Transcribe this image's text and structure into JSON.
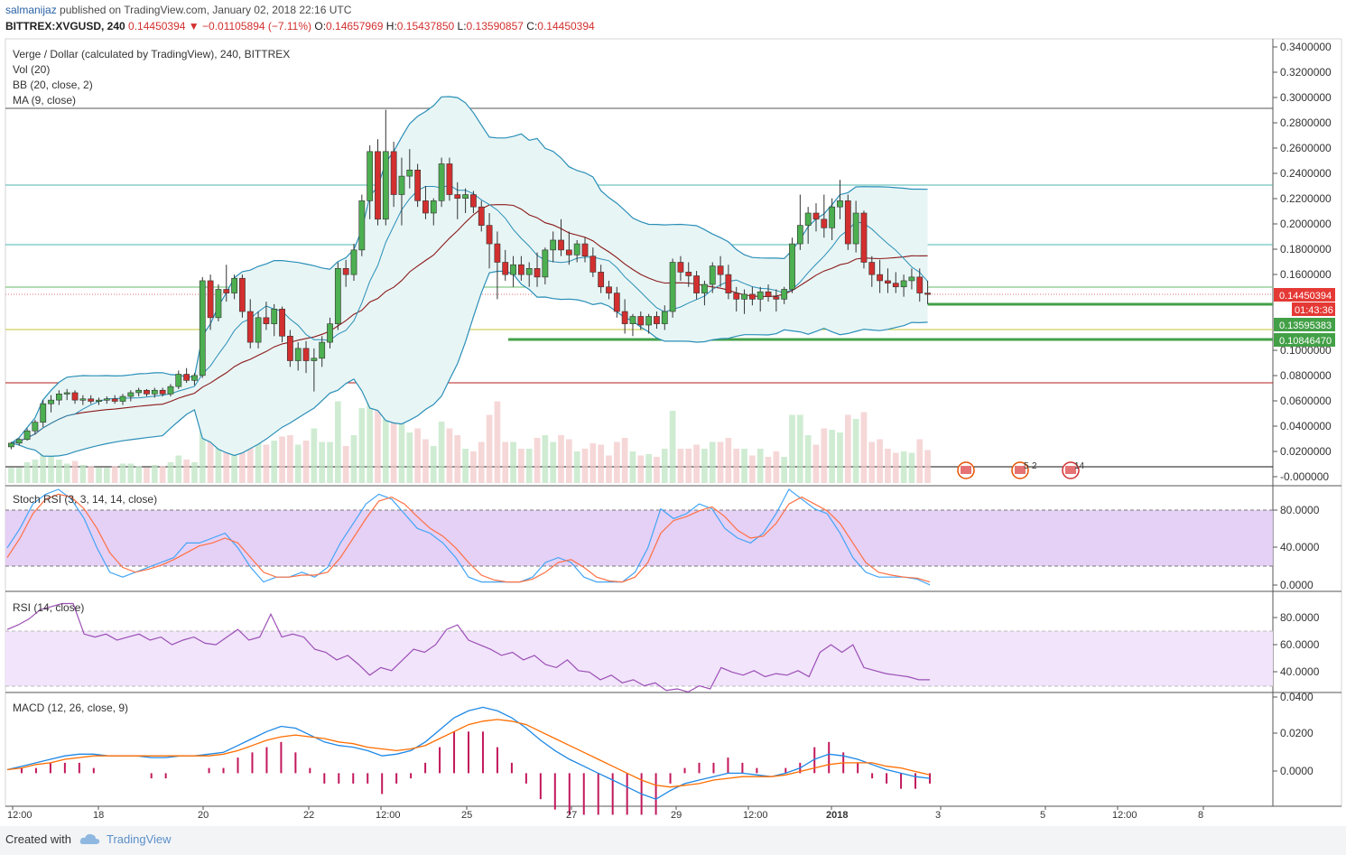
{
  "header": {
    "user": "salmanijaz",
    "published": "published on TradingView.com, January 02, 2018 22:16 UTC",
    "symbol": "BITTREX:XVGUSD, 240",
    "last": "0.14450394",
    "change": "−0.01105894 (−7.11%)",
    "o_label": "O:",
    "o": "0.14657969",
    "h_label": "H:",
    "h": "0.15437850",
    "l_label": "L:",
    "l": "0.13590857",
    "c_label": "C:",
    "c": "0.14450394"
  },
  "legend": {
    "title": "Verge / Dollar (calculated by TradingView), 240, BITTREX",
    "vol": "Vol (20)",
    "bb": "BB (20, close, 2)",
    "ma": "MA (9, close)",
    "stoch": "Stoch RSI (3, 3, 14, 14, close)",
    "rsi": "RSI (14, close)",
    "macd": "MACD (12, 26, close, 9)"
  },
  "price_axis": [
    "0.3400000",
    "0.3200000",
    "0.3000000",
    "0.2800000",
    "0.2600000",
    "0.2400000",
    "0.2200000",
    "0.2000000",
    "0.1800000",
    "0.1600000",
    "0.1000000",
    "0.0800000",
    "0.0600000",
    "0.0400000",
    "0.0200000",
    "-0.000000"
  ],
  "price_tags": {
    "last": "0.14450394",
    "countdown": "01:43:36",
    "support1": "0.13595383",
    "support2": "0.10846470"
  },
  "stoch_axis": [
    "80.0000",
    "40.0000",
    "0.0000"
  ],
  "rsi_axis": [
    "80.0000",
    "60.0000",
    "40.0000"
  ],
  "macd_axis": [
    "0.0400",
    "0.0200",
    "0.0000"
  ],
  "time_axis": [
    "12:00",
    "18",
    "20",
    "22",
    "12:00",
    "25",
    "27",
    "29",
    "12:00",
    "2018",
    "3",
    "5",
    "12:00",
    "8"
  ],
  "events": {
    "e1": "5",
    "e2": "2",
    "e3": "14"
  },
  "footer": {
    "created": "Created with",
    "brand": "TradingView"
  },
  "colors": {
    "up": "#4caf50",
    "down": "#d32f2f",
    "bb_band": "#2a8fb8",
    "bb_fill": "#e8f5f5",
    "ma": "#8b1a1a",
    "stoch_k": "#42a5f5",
    "stoch_d": "#ff7043",
    "rsi": "#9c4fb5",
    "macd": "#1e88e5",
    "signal": "#ff6d00",
    "hist": "#c2185b"
  },
  "chart_data": [
    {
      "type": "candlestick",
      "title": "Verge / Dollar (calculated by TradingView), 240, BITTREX",
      "ylim": [
        -0.005,
        0.345
      ],
      "x_ticks": [
        "12:00",
        "18",
        "20",
        "22",
        "12:00",
        "25",
        "27",
        "29",
        "12:00",
        "2018",
        "3",
        "5",
        "12:00",
        "8"
      ],
      "ohlc": [
        [
          0.02,
          0.024,
          0.018,
          0.023
        ],
        [
          0.023,
          0.027,
          0.021,
          0.026
        ],
        [
          0.026,
          0.035,
          0.025,
          0.033
        ],
        [
          0.033,
          0.042,
          0.03,
          0.04
        ],
        [
          0.04,
          0.058,
          0.036,
          0.055
        ],
        [
          0.055,
          0.062,
          0.048,
          0.058
        ],
        [
          0.058,
          0.066,
          0.054,
          0.063
        ],
        [
          0.063,
          0.067,
          0.058,
          0.064
        ],
        [
          0.064,
          0.066,
          0.055,
          0.058
        ],
        [
          0.058,
          0.062,
          0.054,
          0.059
        ],
        [
          0.059,
          0.062,
          0.055,
          0.057
        ],
        [
          0.057,
          0.06,
          0.054,
          0.058
        ],
        [
          0.058,
          0.061,
          0.055,
          0.059
        ],
        [
          0.059,
          0.062,
          0.055,
          0.057
        ],
        [
          0.057,
          0.063,
          0.054,
          0.061
        ],
        [
          0.061,
          0.066,
          0.057,
          0.064
        ],
        [
          0.064,
          0.068,
          0.061,
          0.066
        ],
        [
          0.066,
          0.067,
          0.061,
          0.063
        ],
        [
          0.063,
          0.068,
          0.06,
          0.066
        ],
        [
          0.066,
          0.068,
          0.061,
          0.063
        ],
        [
          0.063,
          0.071,
          0.061,
          0.069
        ],
        [
          0.069,
          0.082,
          0.067,
          0.079
        ],
        [
          0.079,
          0.084,
          0.072,
          0.074
        ],
        [
          0.074,
          0.08,
          0.07,
          0.078
        ],
        [
          0.078,
          0.158,
          0.076,
          0.155
        ],
        [
          0.155,
          0.16,
          0.115,
          0.125
        ],
        [
          0.125,
          0.152,
          0.122,
          0.148
        ],
        [
          0.148,
          0.168,
          0.138,
          0.145
        ],
        [
          0.145,
          0.16,
          0.14,
          0.157
        ],
        [
          0.157,
          0.16,
          0.125,
          0.13
        ],
        [
          0.13,
          0.14,
          0.1,
          0.105
        ],
        [
          0.105,
          0.13,
          0.1,
          0.125
        ],
        [
          0.125,
          0.138,
          0.115,
          0.12
        ],
        [
          0.12,
          0.136,
          0.11,
          0.132
        ],
        [
          0.132,
          0.134,
          0.105,
          0.11
        ],
        [
          0.11,
          0.115,
          0.085,
          0.09
        ],
        [
          0.09,
          0.105,
          0.082,
          0.1
        ],
        [
          0.1,
          0.106,
          0.08,
          0.09
        ],
        [
          0.09,
          0.1,
          0.065,
          0.092
        ],
        [
          0.092,
          0.11,
          0.085,
          0.105
        ],
        [
          0.105,
          0.125,
          0.1,
          0.12
        ],
        [
          0.12,
          0.17,
          0.115,
          0.165
        ],
        [
          0.165,
          0.172,
          0.15,
          0.16
        ],
        [
          0.16,
          0.185,
          0.155,
          0.18
        ],
        [
          0.18,
          0.225,
          0.175,
          0.22
        ],
        [
          0.22,
          0.265,
          0.205,
          0.26
        ],
        [
          0.26,
          0.27,
          0.2,
          0.205
        ],
        [
          0.205,
          0.294,
          0.2,
          0.26
        ],
        [
          0.26,
          0.268,
          0.215,
          0.225
        ],
        [
          0.225,
          0.255,
          0.2,
          0.24
        ],
        [
          0.24,
          0.262,
          0.23,
          0.245
        ],
        [
          0.245,
          0.25,
          0.215,
          0.22
        ],
        [
          0.22,
          0.232,
          0.205,
          0.21
        ],
        [
          0.21,
          0.222,
          0.2,
          0.22
        ],
        [
          0.22,
          0.255,
          0.215,
          0.25
        ],
        [
          0.25,
          0.255,
          0.22,
          0.225
        ],
        [
          0.225,
          0.235,
          0.205,
          0.222
        ],
        [
          0.222,
          0.23,
          0.21,
          0.225
        ],
        [
          0.225,
          0.228,
          0.21,
          0.215
        ],
        [
          0.215,
          0.22,
          0.195,
          0.2
        ],
        [
          0.2,
          0.21,
          0.165,
          0.185
        ],
        [
          0.185,
          0.195,
          0.14,
          0.17
        ],
        [
          0.17,
          0.18,
          0.155,
          0.16
        ],
        [
          0.16,
          0.175,
          0.15,
          0.168
        ],
        [
          0.168,
          0.175,
          0.155,
          0.16
        ],
        [
          0.16,
          0.17,
          0.15,
          0.165
        ],
        [
          0.165,
          0.178,
          0.15,
          0.158
        ],
        [
          0.158,
          0.182,
          0.152,
          0.18
        ],
        [
          0.18,
          0.195,
          0.17,
          0.188
        ],
        [
          0.188,
          0.205,
          0.175,
          0.18
        ],
        [
          0.18,
          0.195,
          0.168,
          0.176
        ],
        [
          0.176,
          0.188,
          0.17,
          0.185
        ],
        [
          0.185,
          0.19,
          0.17,
          0.175
        ],
        [
          0.175,
          0.182,
          0.158,
          0.162
        ],
        [
          0.162,
          0.168,
          0.145,
          0.15
        ],
        [
          0.15,
          0.155,
          0.14,
          0.145
        ],
        [
          0.145,
          0.15,
          0.125,
          0.13
        ],
        [
          0.13,
          0.14,
          0.112,
          0.12
        ],
        [
          0.12,
          0.128,
          0.11,
          0.126
        ],
        [
          0.126,
          0.13,
          0.115,
          0.119
        ],
        [
          0.119,
          0.128,
          0.112,
          0.126
        ],
        [
          0.126,
          0.13,
          0.116,
          0.12
        ],
        [
          0.12,
          0.135,
          0.115,
          0.13
        ],
        [
          0.13,
          0.173,
          0.125,
          0.17
        ],
        [
          0.17,
          0.175,
          0.155,
          0.162
        ],
        [
          0.162,
          0.17,
          0.15,
          0.159
        ],
        [
          0.159,
          0.163,
          0.14,
          0.145
        ],
        [
          0.145,
          0.155,
          0.135,
          0.152
        ],
        [
          0.152,
          0.17,
          0.145,
          0.167
        ],
        [
          0.167,
          0.175,
          0.15,
          0.16
        ],
        [
          0.16,
          0.168,
          0.14,
          0.145
        ],
        [
          0.145,
          0.15,
          0.13,
          0.14
        ],
        [
          0.14,
          0.148,
          0.128,
          0.144
        ],
        [
          0.144,
          0.15,
          0.135,
          0.14
        ],
        [
          0.14,
          0.15,
          0.13,
          0.146
        ],
        [
          0.146,
          0.152,
          0.138,
          0.142
        ],
        [
          0.142,
          0.148,
          0.13,
          0.14
        ],
        [
          0.14,
          0.15,
          0.136,
          0.148
        ],
        [
          0.148,
          0.19,
          0.145,
          0.185
        ],
        [
          0.185,
          0.225,
          0.18,
          0.2
        ],
        [
          0.2,
          0.215,
          0.185,
          0.21
        ],
        [
          0.21,
          0.218,
          0.195,
          0.205
        ],
        [
          0.205,
          0.225,
          0.19,
          0.198
        ],
        [
          0.198,
          0.222,
          0.188,
          0.215
        ],
        [
          0.215,
          0.237,
          0.205,
          0.22
        ],
        [
          0.22,
          0.225,
          0.18,
          0.185
        ],
        [
          0.185,
          0.22,
          0.178,
          0.21
        ],
        [
          0.21,
          0.212,
          0.165,
          0.17
        ],
        [
          0.17,
          0.175,
          0.15,
          0.16
        ],
        [
          0.16,
          0.172,
          0.145,
          0.155
        ],
        [
          0.155,
          0.165,
          0.145,
          0.153
        ],
        [
          0.153,
          0.162,
          0.145,
          0.15
        ],
        [
          0.15,
          0.16,
          0.142,
          0.155
        ],
        [
          0.155,
          0.165,
          0.148,
          0.158
        ],
        [
          0.158,
          0.165,
          0.138,
          0.145
        ],
        [
          0.145,
          0.155,
          0.136,
          0.144
        ]
      ]
    },
    {
      "type": "line",
      "title": "Stoch RSI (3, 3, 14, 14, close)",
      "ylim": [
        0,
        100
      ],
      "series": [
        {
          "values": [
            40,
            60,
            85,
            95,
            100,
            90,
            70,
            40,
            15,
            10,
            15,
            20,
            25,
            30,
            45,
            45,
            50,
            55,
            40,
            20,
            5,
            10,
            10,
            15,
            10,
            20,
            45,
            65,
            85,
            95,
            90,
            75,
            60,
            55,
            45,
            30,
            10,
            5,
            5,
            5,
            5,
            10,
            25,
            30,
            25,
            10,
            5,
            5,
            5,
            15,
            40,
            80,
            70,
            75,
            85,
            80,
            60,
            50,
            45,
            55,
            75,
            100,
            90,
            80,
            75,
            55,
            30,
            15,
            10,
            10,
            10,
            8,
            2
          ]
        },
        {
          "values": [
            30,
            50,
            75,
            90,
            95,
            92,
            80,
            60,
            35,
            20,
            15,
            18,
            22,
            28,
            35,
            42,
            45,
            50,
            45,
            30,
            15,
            10,
            10,
            12,
            12,
            15,
            30,
            50,
            70,
            88,
            92,
            85,
            72,
            60,
            52,
            40,
            25,
            12,
            7,
            5,
            5,
            8,
            15,
            25,
            28,
            20,
            10,
            6,
            5,
            10,
            25,
            55,
            68,
            72,
            78,
            82,
            72,
            58,
            50,
            52,
            65,
            85,
            92,
            85,
            78,
            65,
            45,
            25,
            15,
            12,
            10,
            9,
            5
          ]
        }
      ]
    },
    {
      "type": "line",
      "title": "RSI (14, close)",
      "ylim": [
        20,
        100
      ],
      "series": [
        {
          "values": [
            75,
            78,
            82,
            88,
            90,
            92,
            92,
            72,
            70,
            72,
            68,
            70,
            72,
            68,
            70,
            65,
            68,
            70,
            66,
            65,
            70,
            75,
            68,
            70,
            85,
            70,
            72,
            70,
            62,
            60,
            55,
            58,
            52,
            45,
            50,
            48,
            55,
            62,
            60,
            65,
            75,
            78,
            68,
            65,
            62,
            58,
            60,
            55,
            58,
            52,
            50,
            55,
            48,
            47,
            42,
            45,
            40,
            42,
            38,
            40,
            35,
            36,
            34,
            38,
            36,
            50,
            47,
            45,
            48,
            44,
            46,
            45,
            48,
            44,
            60,
            65,
            60,
            65,
            50,
            48,
            46,
            45,
            44,
            42,
            42
          ]
        }
      ]
    },
    {
      "type": "line",
      "title": "MACD (12, 26, close, 9)",
      "ylim": [
        -0.017,
        0.045
      ],
      "series": [
        {
          "values": [
            0.002,
            0.004,
            0.006,
            0.008,
            0.01,
            0.011,
            0.011,
            0.01,
            0.01,
            0.01,
            0.009,
            0.009,
            0.01,
            0.01,
            0.011,
            0.012,
            0.016,
            0.02,
            0.024,
            0.027,
            0.026,
            0.022,
            0.018,
            0.016,
            0.015,
            0.013,
            0.01,
            0.011,
            0.013,
            0.018,
            0.025,
            0.032,
            0.036,
            0.038,
            0.036,
            0.032,
            0.026,
            0.019,
            0.013,
            0.008,
            0.004,
            0.0,
            -0.004,
            -0.008,
            -0.012,
            -0.015,
            -0.01,
            -0.006,
            -0.004,
            -0.002,
            0.0,
            0.0,
            -0.001,
            -0.002,
            0.0,
            0.003,
            0.008,
            0.011,
            0.01,
            0.008,
            0.005,
            0.002,
            0.0,
            -0.002,
            -0.003
          ]
        },
        {
          "values": [
            0.002,
            0.003,
            0.005,
            0.006,
            0.008,
            0.009,
            0.01,
            0.01,
            0.01,
            0.01,
            0.01,
            0.01,
            0.01,
            0.01,
            0.01,
            0.011,
            0.013,
            0.016,
            0.019,
            0.021,
            0.022,
            0.021,
            0.02,
            0.018,
            0.017,
            0.015,
            0.014,
            0.013,
            0.014,
            0.016,
            0.02,
            0.024,
            0.028,
            0.03,
            0.031,
            0.03,
            0.028,
            0.024,
            0.02,
            0.016,
            0.012,
            0.008,
            0.004,
            0.0,
            -0.004,
            -0.007,
            -0.008,
            -0.007,
            -0.006,
            -0.004,
            -0.003,
            -0.002,
            -0.002,
            -0.002,
            -0.001,
            0.001,
            0.003,
            0.005,
            0.006,
            0.006,
            0.006,
            0.004,
            0.003,
            0.001,
            -0.001
          ]
        }
      ]
    }
  ]
}
